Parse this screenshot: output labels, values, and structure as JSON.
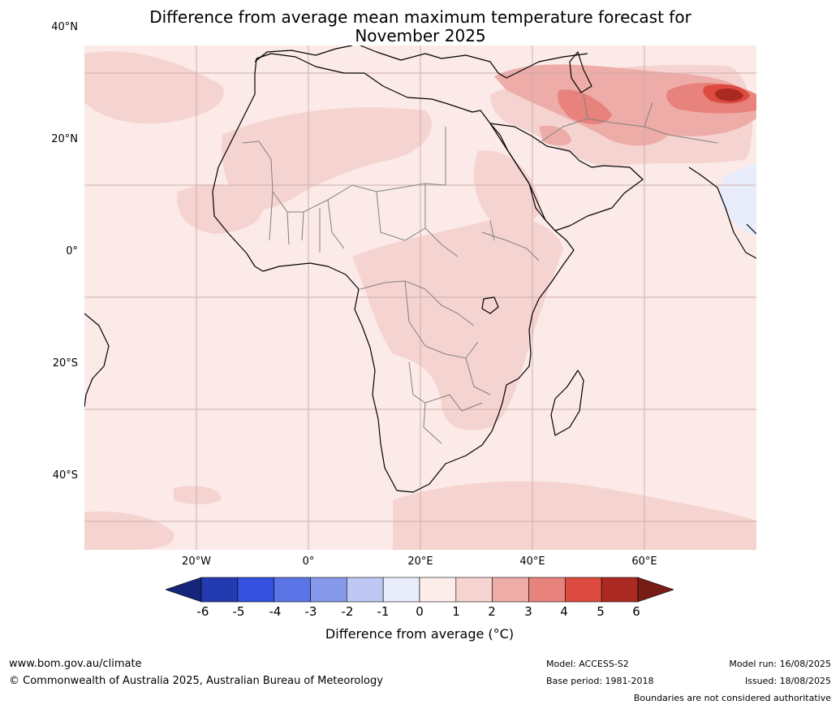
{
  "title_line1": "Difference from average mean maximum temperature forecast for",
  "title_line2": "November 2025",
  "map": {
    "background": "#fbeae7",
    "lat_labels": [
      "40°N",
      "20°N",
      "0°",
      "20°S",
      "40°S"
    ],
    "lon_labels": [
      "20°W",
      "0°",
      "20°E",
      "40°E",
      "60°E"
    ],
    "gridlines": true,
    "land_outline_color": "#000000",
    "border_color": "#808080"
  },
  "colorbar": {
    "title": "Difference from average (°C)",
    "ticks": [
      "-6",
      "-5",
      "-4",
      "-3",
      "-2",
      "-1",
      "0",
      "1",
      "2",
      "3",
      "4",
      "5",
      "6"
    ],
    "colors": [
      "#15267a",
      "#243ab0",
      "#3451e0",
      "#5b74e6",
      "#8598ea",
      "#bfc8f2",
      "#e9ecfa",
      "#fcecea",
      "#f5d3d0",
      "#eeaca8",
      "#e8827c",
      "#dd4a40",
      "#aa2a22",
      "#781d15"
    ]
  },
  "footer": {
    "website": "www.bom.gov.au/climate",
    "copyright": "© Commonwealth of Australia 2025, Australian Bureau of Meteorology",
    "model": "Model: ACCESS-S2",
    "base_period": "Base period: 1981-2018",
    "model_run": "Model run: 16/08/2025",
    "issued": "Issued: 18/08/2025",
    "disclaimer": "Boundaries are not considered authoritative"
  }
}
